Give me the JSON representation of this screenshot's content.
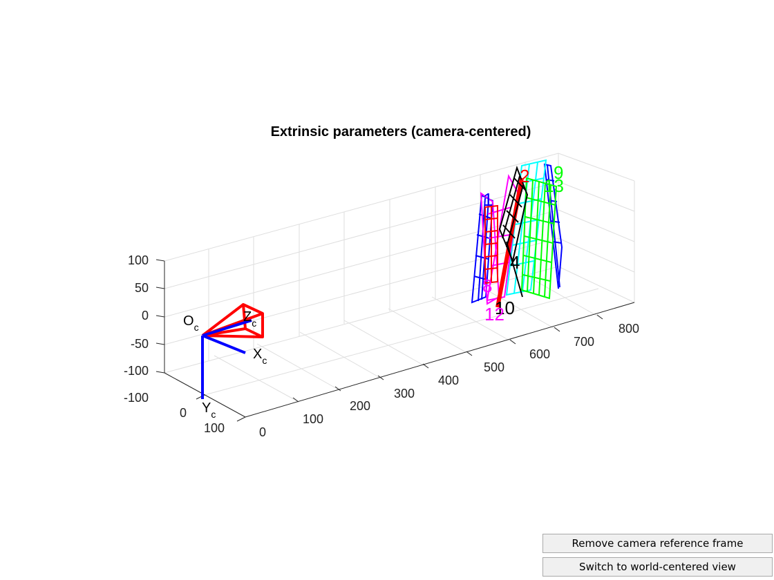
{
  "figure": {
    "title": "Extrinsic parameters (camera-centered)"
  },
  "chart_data": {
    "type": "scatter",
    "title": "Extrinsic parameters (camera-centered)",
    "xlabel": "",
    "ylabel": "",
    "grid": true,
    "axes": {
      "X": {
        "ticks": [
          "-100",
          "0",
          "100"
        ],
        "range": [
          -100,
          100
        ]
      },
      "Y_depth": {
        "ticks": [
          "0",
          "100",
          "200",
          "300",
          "400",
          "500",
          "600",
          "700",
          "800"
        ],
        "range": [
          0,
          800
        ]
      },
      "Z": {
        "ticks": [
          "100",
          "50",
          "0",
          "-50",
          "-100"
        ],
        "range": [
          -100,
          100
        ]
      }
    },
    "camera_frame": {
      "origin_label": "O",
      "origin_sub": "c",
      "x_label": "X",
      "x_sub": "c",
      "y_label": "Y",
      "y_sub": "c",
      "z_label": "Z",
      "z_sub": "c",
      "axis_color": "#0000ff",
      "frustum_color": "#ff0000"
    },
    "boards": [
      {
        "id": "1",
        "color": "#0000ff"
      },
      {
        "id": "2",
        "color": "#ff0000"
      },
      {
        "id": "4",
        "color": "#000000"
      },
      {
        "id": "8",
        "color": "#ff00ff"
      },
      {
        "id": "9",
        "color": "#00ff00"
      },
      {
        "id": "10",
        "color": "#000000"
      },
      {
        "id": "12",
        "color": "#ff00ff"
      },
      {
        "id": "13",
        "color": "#00ff00"
      }
    ]
  },
  "buttons": {
    "remove_camera": "Remove camera reference frame",
    "switch_view": "Switch to world-centered view"
  }
}
